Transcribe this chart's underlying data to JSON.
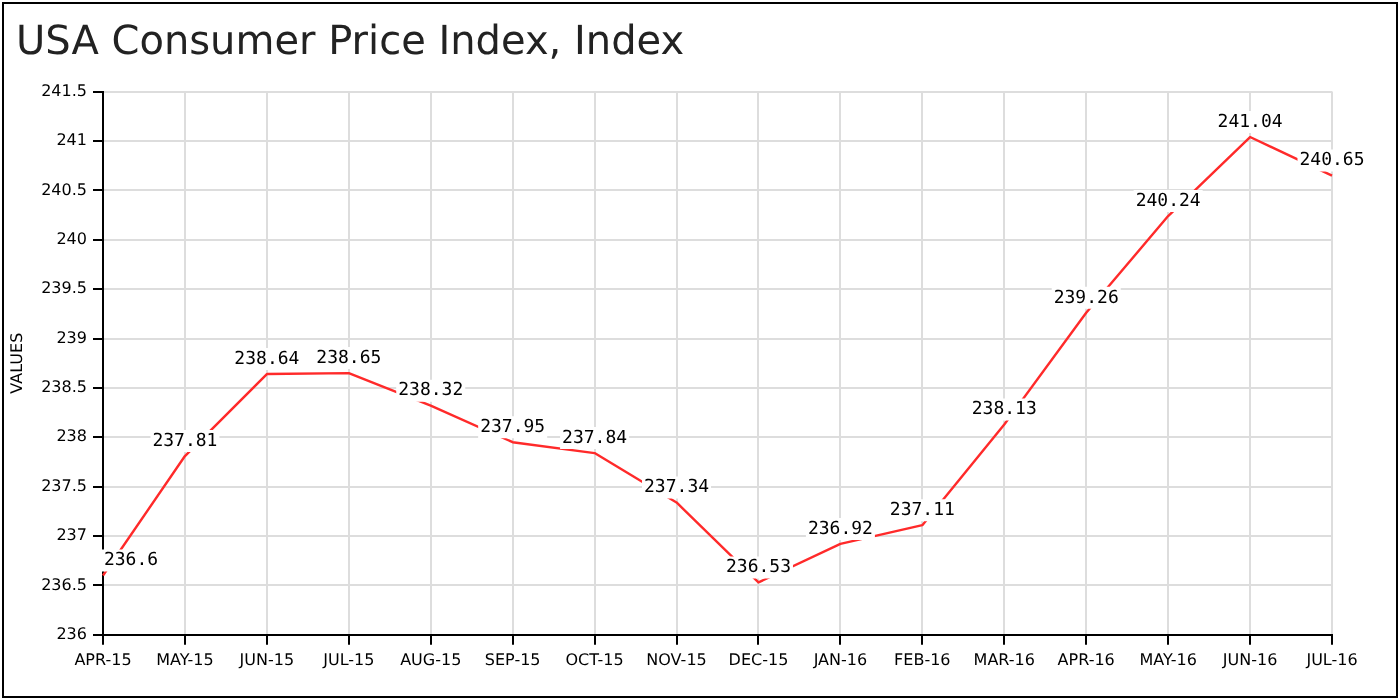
{
  "chart_data": {
    "type": "line",
    "title": "USA Consumer Price Index, Index",
    "ylabel": "VALUES",
    "categories": [
      "APR-15",
      "MAY-15",
      "JUN-15",
      "JUL-15",
      "AUG-15",
      "SEP-15",
      "OCT-15",
      "NOV-15",
      "DEC-15",
      "JAN-16",
      "FEB-16",
      "MAR-16",
      "APR-16",
      "MAY-16",
      "JUN-16",
      "JUL-16"
    ],
    "series": [
      {
        "color": "#ff2a2a",
        "values": [
          236.6,
          237.81,
          238.64,
          238.65,
          238.32,
          237.95,
          237.84,
          237.34,
          236.53,
          236.92,
          237.11,
          238.13,
          239.26,
          240.24,
          241.04,
          240.65
        ]
      }
    ],
    "ylim": [
      236,
      241.5
    ],
    "yticks": [
      236,
      236.5,
      237,
      237.5,
      238,
      238.5,
      239,
      239.5,
      240,
      240.5,
      241,
      241.5
    ],
    "grid": true,
    "legend": false,
    "marker": "none",
    "line_style": "solid",
    "data_labels": true
  }
}
